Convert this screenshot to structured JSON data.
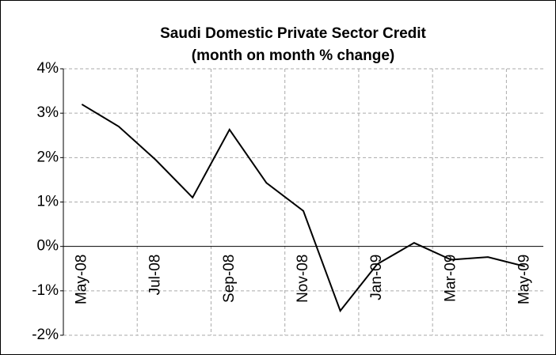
{
  "chart_data": {
    "type": "line",
    "title": "Saudi Domestic Private Sector Credit",
    "subtitle": "(month on month % change)",
    "categories": [
      "May-08",
      null,
      "Jul-08",
      null,
      "Sep-08",
      null,
      "Nov-08",
      null,
      "Jan-09",
      null,
      "Mar-09",
      null,
      "May-09"
    ],
    "series": [
      {
        "color": "#000000",
        "values": [
          3.2,
          2.7,
          1.95,
          1.1,
          2.63,
          1.43,
          0.8,
          -1.45,
          -0.4,
          0.08,
          -0.3,
          -0.24,
          -0.45
        ]
      }
    ],
    "ylim": [
      -2,
      4
    ],
    "yticks": [
      {
        "value": -2,
        "label": "-2%"
      },
      {
        "value": -1,
        "label": "-1%"
      },
      {
        "value": 0,
        "label": "0%"
      },
      {
        "value": 1,
        "label": "1%"
      },
      {
        "value": 2,
        "label": "2%"
      },
      {
        "value": 3,
        "label": "3%"
      },
      {
        "value": 4,
        "label": "4%"
      }
    ],
    "grid": true
  }
}
